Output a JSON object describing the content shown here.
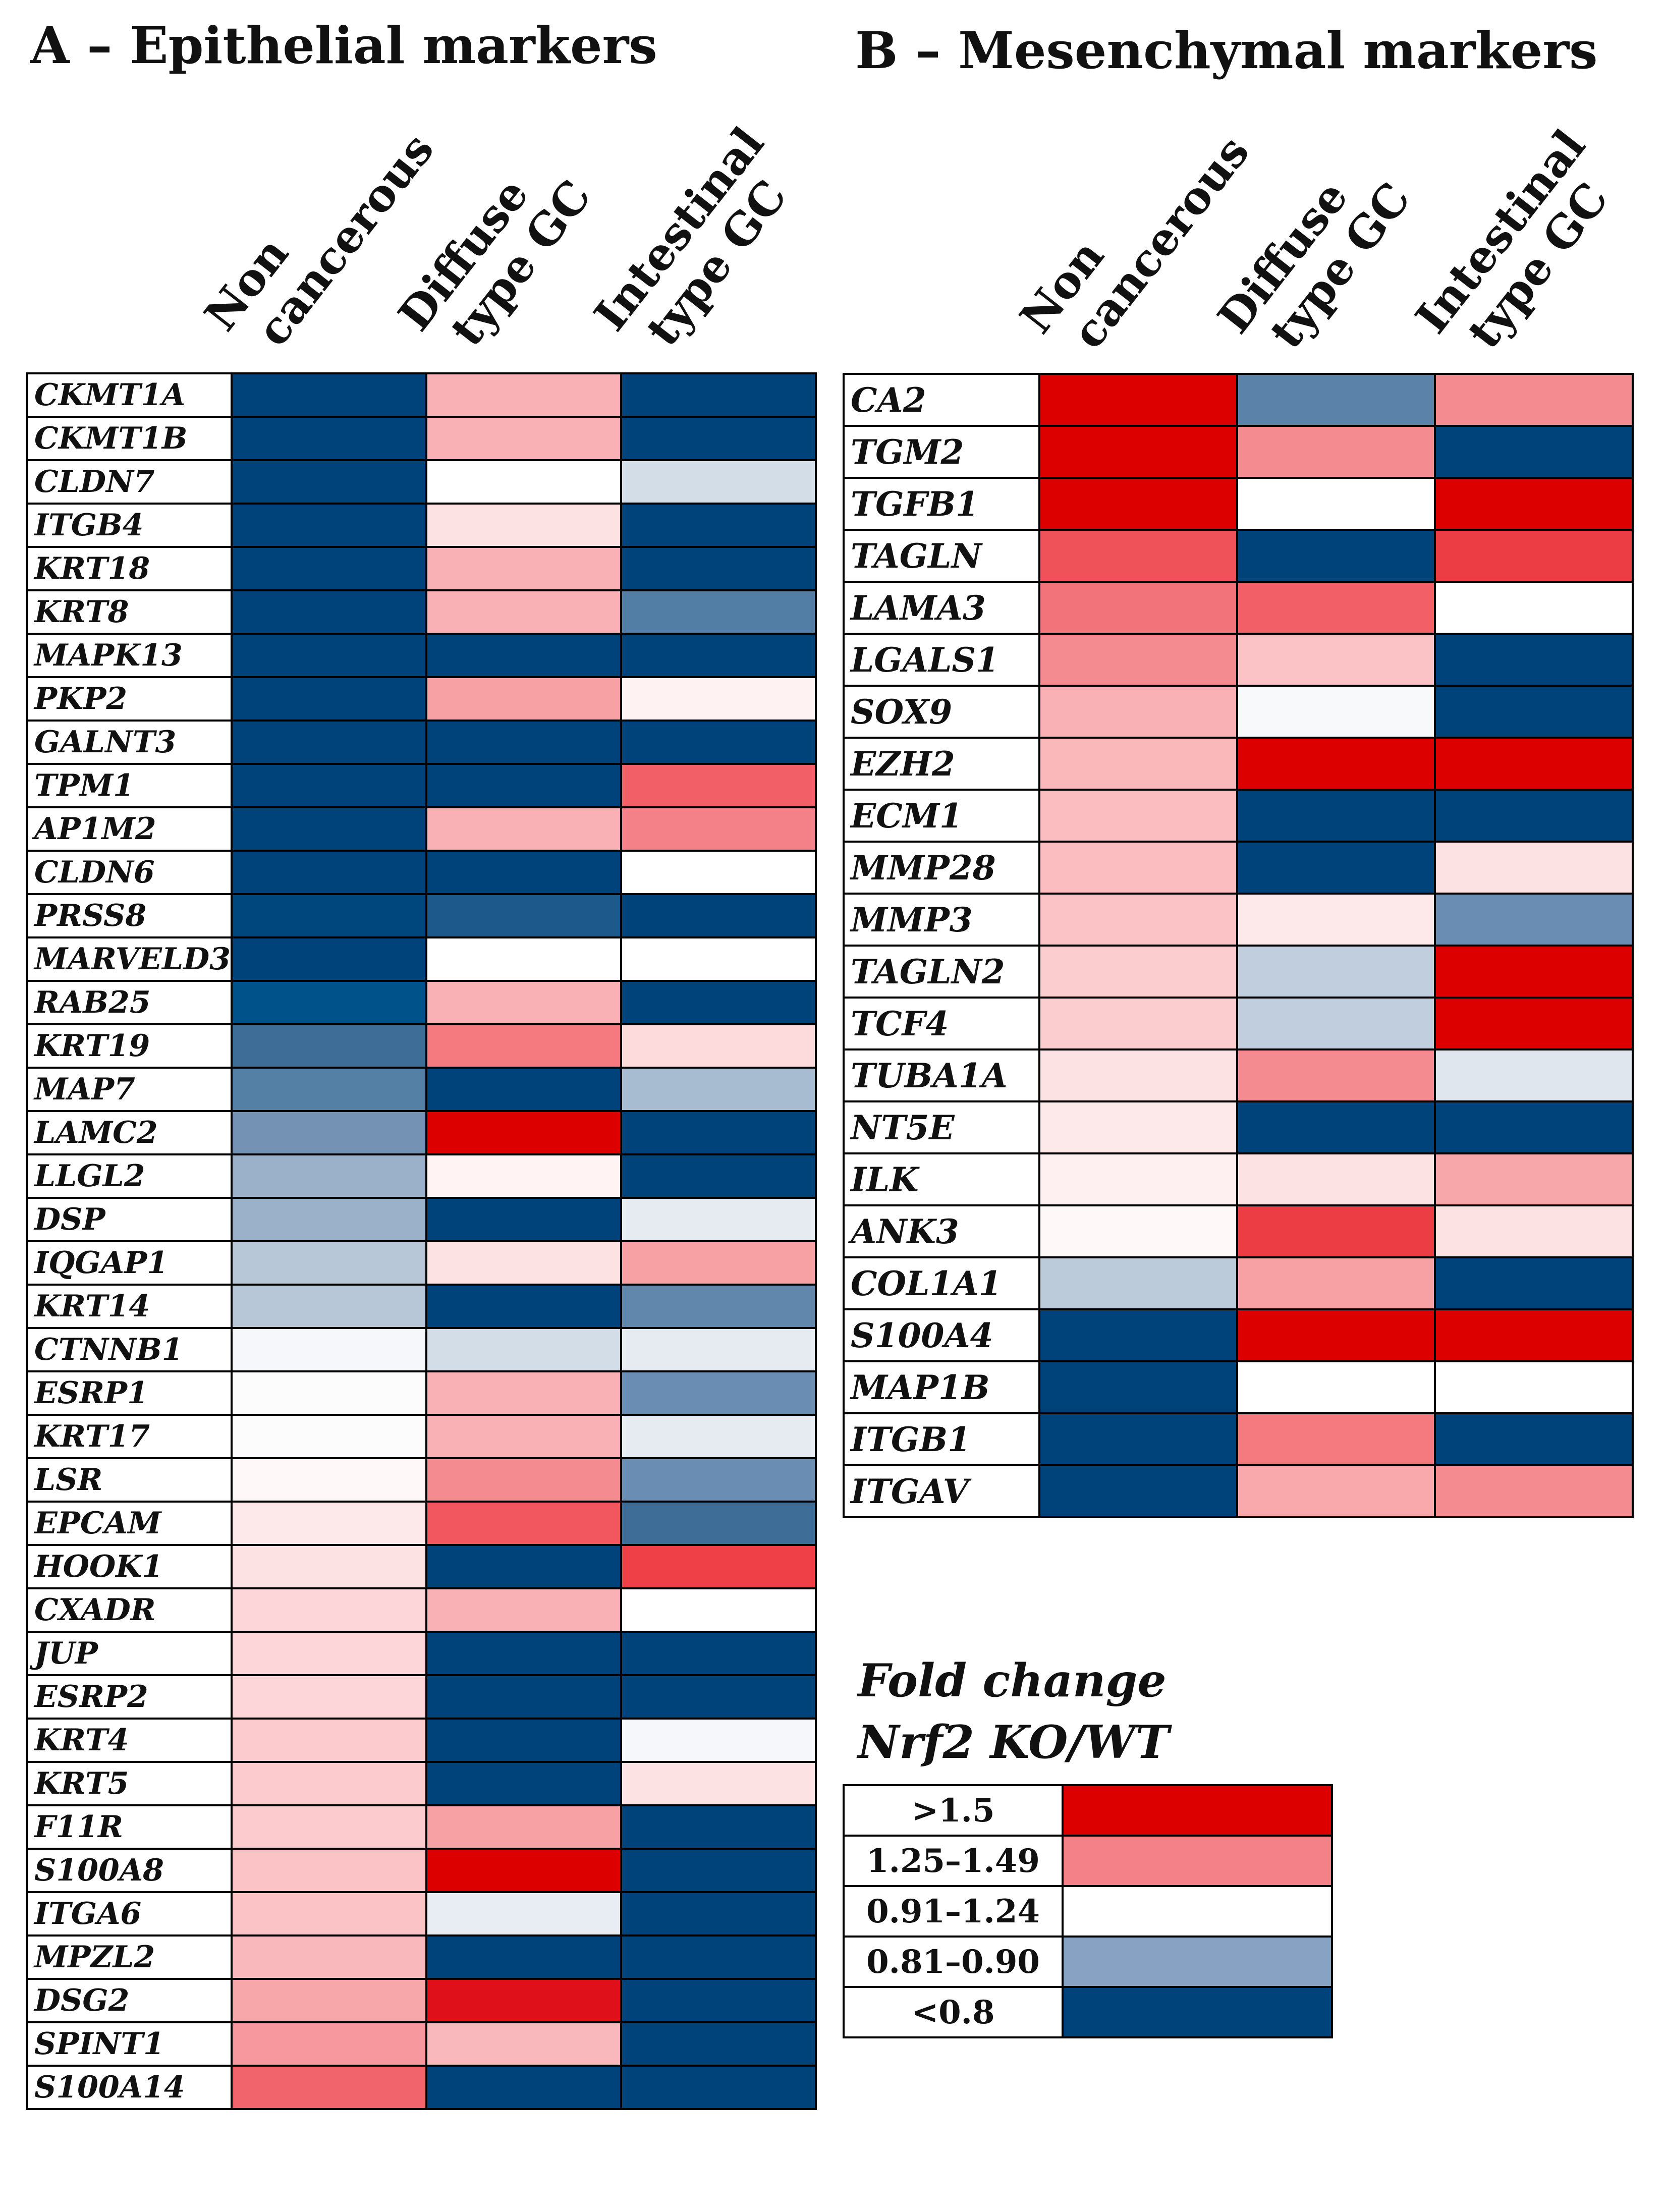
{
  "panels": {
    "a_title": "A – Epithelial markers",
    "b_title": "B – Mesenchymal markers"
  },
  "columns": {
    "non_cancerous": [
      "Non",
      "cancerous"
    ],
    "diffuse": [
      "Diffuse",
      "type GC"
    ],
    "intestinal": [
      "Intestinal",
      "type GC"
    ]
  },
  "legend": {
    "title_line1": "Fold change",
    "title_line2": "Nrf2 KO/WT",
    "items": [
      {
        "label": ">1.5",
        "color": "#dd0000"
      },
      {
        "label": "1.25–1.49",
        "color": "#f48187"
      },
      {
        "label": "0.91–1.24",
        "color": "#ffffff"
      },
      {
        "label": "0.81–0.90",
        "color": "#87a2c2"
      },
      {
        "label": "<0.8",
        "color": "#00427a"
      }
    ]
  },
  "chart_data": [
    {
      "type": "heatmap",
      "title": "A – Epithelial markers",
      "columns": [
        "Non cancerous",
        "Diffuse type GC",
        "Intestinal type GC"
      ],
      "rows": [
        {
          "gene": "CKMT1A",
          "colors": [
            "#00427a",
            "#f9b1b5",
            "#00427a"
          ]
        },
        {
          "gene": "CKMT1B",
          "colors": [
            "#00427a",
            "#f9b1b5",
            "#00427a"
          ]
        },
        {
          "gene": "CLDN7",
          "colors": [
            "#00427a",
            "#ffffff",
            "#d3dde7"
          ]
        },
        {
          "gene": "ITGB4",
          "colors": [
            "#00427a",
            "#fde2e3",
            "#00427a"
          ]
        },
        {
          "gene": "KRT18",
          "colors": [
            "#00427a",
            "#f9b1b5",
            "#00427a"
          ]
        },
        {
          "gene": "KRT8",
          "colors": [
            "#00427a",
            "#f9b1b5",
            "#527da4"
          ]
        },
        {
          "gene": "MAPK13",
          "colors": [
            "#00427a",
            "#00427a",
            "#00427a"
          ]
        },
        {
          "gene": "PKP2",
          "colors": [
            "#00427a",
            "#f7a1a5",
            "#fef2f3"
          ]
        },
        {
          "gene": "GALNT3",
          "colors": [
            "#00427a",
            "#00427a",
            "#00427a"
          ]
        },
        {
          "gene": "TPM1",
          "colors": [
            "#00427a",
            "#00427a",
            "#f25f66"
          ]
        },
        {
          "gene": "AP1M2",
          "colors": [
            "#00427a",
            "#f9b1b5",
            "#f48187"
          ]
        },
        {
          "gene": "CLDN6",
          "colors": [
            "#00427a",
            "#00427a",
            "#ffffff"
          ]
        },
        {
          "gene": "PRSS8",
          "colors": [
            "#00477e",
            "#1d5a8b",
            "#00427a"
          ]
        },
        {
          "gene": "MARVELD3",
          "colors": [
            "#00427a",
            "#ffffff",
            "#ffffff"
          ]
        },
        {
          "gene": "RAB25",
          "colors": [
            "#00538a",
            "#f9b1b5",
            "#00427a"
          ]
        },
        {
          "gene": "KRT19",
          "colors": [
            "#3e6e98",
            "#f47a80",
            "#fddadc"
          ]
        },
        {
          "gene": "MAP7",
          "colors": [
            "#5580a6",
            "#00427a",
            "#a7bbd1"
          ]
        },
        {
          "gene": "LAMC2",
          "colors": [
            "#7392b4",
            "#dd0000",
            "#00427a"
          ]
        },
        {
          "gene": "LLGL2",
          "colors": [
            "#9bb0c9",
            "#fff3f4",
            "#00427a"
          ]
        },
        {
          "gene": "DSP",
          "colors": [
            "#9bb0c9",
            "#00427a",
            "#e6ebf2"
          ]
        },
        {
          "gene": "IQGAP1",
          "colors": [
            "#b7c7d8",
            "#fde2e3",
            "#f7a1a5"
          ]
        },
        {
          "gene": "KRT14",
          "colors": [
            "#b7c7d8",
            "#00427a",
            "#6187ad"
          ]
        },
        {
          "gene": "CTNNB1",
          "colors": [
            "#f5f7fa",
            "#d3dde7",
            "#e6ebf2"
          ]
        },
        {
          "gene": "ESRP1",
          "colors": [
            "#fcfcfc",
            "#f9b1b5",
            "#6a8eb3"
          ]
        },
        {
          "gene": "KRT17",
          "colors": [
            "#fcfcfc",
            "#f9b1b5",
            "#e6ebf2"
          ]
        },
        {
          "gene": "LSR",
          "colors": [
            "#fef8f8",
            "#f48b90",
            "#6a8eb3"
          ]
        },
        {
          "gene": "EPCAM",
          "colors": [
            "#fde9ea",
            "#f2575f",
            "#3e6e98"
          ]
        },
        {
          "gene": "HOOK1",
          "colors": [
            "#fde2e3",
            "#00427a",
            "#ef3f47"
          ]
        },
        {
          "gene": "CXADR",
          "colors": [
            "#fcd6d8",
            "#f9b1b5",
            "#ffffff"
          ]
        },
        {
          "gene": "JUP",
          "colors": [
            "#fcd6d8",
            "#00427a",
            "#00427a"
          ]
        },
        {
          "gene": "ESRP2",
          "colors": [
            "#fcd6d8",
            "#00427a",
            "#00427a"
          ]
        },
        {
          "gene": "KRT4",
          "colors": [
            "#fbcbce",
            "#00427a",
            "#f5f7fa"
          ]
        },
        {
          "gene": "KRT5",
          "colors": [
            "#fbcbce",
            "#00427a",
            "#fde2e3"
          ]
        },
        {
          "gene": "F11R",
          "colors": [
            "#fbcbce",
            "#f7a1a5",
            "#00427a"
          ]
        },
        {
          "gene": "S100A8",
          "colors": [
            "#fbc3c6",
            "#dd0000",
            "#00427a"
          ]
        },
        {
          "gene": "ITGA6",
          "colors": [
            "#fbc3c6",
            "#e8edf3",
            "#00427a"
          ]
        },
        {
          "gene": "MPZL2",
          "colors": [
            "#f9b8bb",
            "#00427a",
            "#00427a"
          ]
        },
        {
          "gene": "DSG2",
          "colors": [
            "#f7a6aa",
            "#e0101a",
            "#00427a"
          ]
        },
        {
          "gene": "SPINT1",
          "colors": [
            "#f6989d",
            "#f9b8bb",
            "#00427a"
          ]
        },
        {
          "gene": "S100A14",
          "colors": [
            "#f2646b",
            "#00427a",
            "#00427a"
          ]
        }
      ]
    },
    {
      "type": "heatmap",
      "title": "B – Mesenchymal markers",
      "columns": [
        "Non cancerous",
        "Diffuse type GC",
        "Intestinal type GC"
      ],
      "rows": [
        {
          "gene": "CA2",
          "colors": [
            "#dd0000",
            "#5b82a9",
            "#f48b90"
          ]
        },
        {
          "gene": "TGM2",
          "colors": [
            "#dd0000",
            "#f48b90",
            "#00427a"
          ]
        },
        {
          "gene": "TGFB1",
          "colors": [
            "#dd0000",
            "#ffffff",
            "#dd0000"
          ]
        },
        {
          "gene": "TAGLN",
          "colors": [
            "#ef5259",
            "#00427a",
            "#ec3c44"
          ]
        },
        {
          "gene": "LAMA3",
          "colors": [
            "#f2747a",
            "#f25f66",
            "#ffffff"
          ]
        },
        {
          "gene": "LGALS1",
          "colors": [
            "#f48b90",
            "#fbc3c6",
            "#00427a"
          ]
        },
        {
          "gene": "SOX9",
          "colors": [
            "#f9b1b5",
            "#f7f9fb",
            "#00427a"
          ]
        },
        {
          "gene": "EZH2",
          "colors": [
            "#fbb8bb",
            "#dd0000",
            "#dd0000"
          ]
        },
        {
          "gene": "ECM1",
          "colors": [
            "#fbbdc0",
            "#00427a",
            "#00427a"
          ]
        },
        {
          "gene": "MMP28",
          "colors": [
            "#fbbdc0",
            "#00427a",
            "#fde2e3"
          ]
        },
        {
          "gene": "MMP3",
          "colors": [
            "#fbc3c6",
            "#fde9ea",
            "#6a8eb3"
          ]
        },
        {
          "gene": "TAGLN2",
          "colors": [
            "#fccdcf",
            "#c0cedd",
            "#dd0000"
          ]
        },
        {
          "gene": "TCF4",
          "colors": [
            "#fccdcf",
            "#c0cedd",
            "#dd0000"
          ]
        },
        {
          "gene": "TUBA1A",
          "colors": [
            "#fde2e3",
            "#f48b90",
            "#dfe6ee"
          ]
        },
        {
          "gene": "NT5E",
          "colors": [
            "#fde9ea",
            "#00427a",
            "#00427a"
          ]
        },
        {
          "gene": "ILK",
          "colors": [
            "#fef0f1",
            "#fde2e3",
            "#f7a6aa"
          ]
        },
        {
          "gene": "ANK3",
          "colors": [
            "#fef8f8",
            "#ec3c44",
            "#fde2e3"
          ]
        },
        {
          "gene": "COL1A1",
          "colors": [
            "#bccbda",
            "#f7a1a5",
            "#00427a"
          ]
        },
        {
          "gene": "S100A4",
          "colors": [
            "#00427a",
            "#dd0000",
            "#dd0000"
          ]
        },
        {
          "gene": "MAP1B",
          "colors": [
            "#00427a",
            "#ffffff",
            "#ffffff"
          ]
        },
        {
          "gene": "ITGB1",
          "colors": [
            "#00427a",
            "#f47a80",
            "#00427a"
          ]
        },
        {
          "gene": "ITGAV",
          "colors": [
            "#00427a",
            "#f9a8ac",
            "#f48b90"
          ]
        }
      ]
    }
  ]
}
